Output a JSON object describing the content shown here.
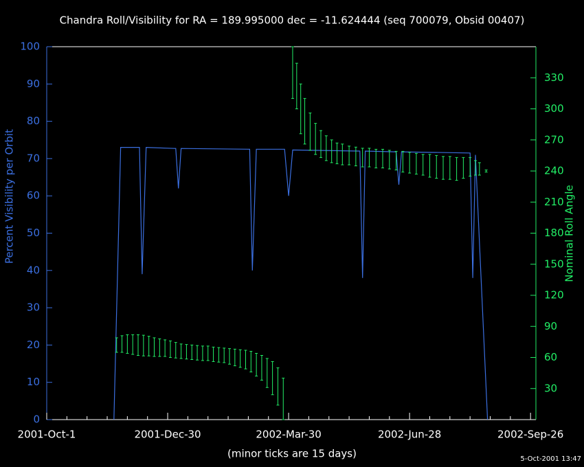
{
  "chart_data": {
    "type": "line",
    "title": "Chandra Roll/Visibility for RA = 189.995000 dec = -11.624444 (seq 700079, Obsid 00407)",
    "xlabel": "(minor ticks are 15 days)",
    "ylabel": "Percent Visibility per Orbit",
    "y2label": "Nominal Roll Angle",
    "timestamp": "5-Oct-2001 13:47",
    "xlim": [
      0,
      364
    ],
    "xticks": [
      {
        "value": 0,
        "label": "2001-Oct-1"
      },
      {
        "value": 90,
        "label": "2001-Dec-30"
      },
      {
        "value": 180,
        "label": "2002-Mar-30"
      },
      {
        "value": 270,
        "label": "2002-Jun-28"
      },
      {
        "value": 360,
        "label": "2002-Sep-26"
      }
    ],
    "xminorticks": [
      15,
      30,
      45,
      60,
      75,
      105,
      120,
      135,
      150,
      165,
      195,
      210,
      225,
      240,
      255,
      285,
      300,
      315,
      330,
      345
    ],
    "ylim": [
      0,
      100
    ],
    "yticks": [
      0,
      10,
      20,
      30,
      40,
      50,
      60,
      70,
      80,
      90,
      100
    ],
    "y2lim": [
      0,
      360
    ],
    "y2ticks": [
      30,
      60,
      90,
      120,
      150,
      180,
      210,
      240,
      270,
      300,
      330
    ],
    "left_axis_color": "#3b6fe0",
    "right_axis_color": "#22ee66",
    "series": [
      {
        "color": "#3b6fe0",
        "style": "line",
        "x": [
          50,
          55,
          69,
          71,
          74,
          96,
          98,
          100,
          151,
          153,
          156,
          177,
          180,
          183,
          233,
          235,
          237,
          260,
          262,
          264,
          315,
          317,
          319,
          328
        ],
        "values": [
          0,
          73,
          73,
          39,
          73,
          72.7,
          62,
          72.7,
          72.5,
          40,
          72.5,
          72.5,
          60,
          72.3,
          72,
          38,
          72,
          71.8,
          63,
          71.8,
          71.5,
          38,
          71,
          0
        ]
      },
      {
        "color": "#22ee66",
        "style": "errorbar",
        "axis": "y2",
        "x": [
          52,
          56,
          60,
          64,
          68,
          72,
          76,
          80,
          84,
          88,
          92,
          96,
          100,
          104,
          108,
          112,
          116,
          120,
          124,
          128,
          132,
          136,
          140,
          144,
          148,
          152,
          156,
          160,
          164,
          168,
          172,
          176,
          183,
          186,
          189,
          192,
          196,
          200,
          204,
          208,
          212,
          216,
          220,
          225,
          230,
          235,
          240,
          245,
          250,
          255,
          260,
          265,
          270,
          275,
          280,
          285,
          290,
          295,
          300,
          305,
          310,
          315,
          319,
          322,
          327
        ],
        "values": [
          72,
          73,
          73,
          72.5,
          72,
          71.5,
          71,
          70,
          69.5,
          69,
          68,
          67,
          66,
          65.5,
          65,
          64.5,
          64,
          64,
          63,
          62.5,
          62,
          61,
          60,
          59,
          58,
          56,
          53,
          50,
          45,
          40,
          32,
          20,
          335,
          322,
          300,
          288,
          278,
          271,
          266,
          262,
          259,
          257,
          256,
          255,
          254,
          253,
          253,
          252,
          252,
          251,
          250,
          249,
          248,
          247,
          246,
          245,
          244,
          243,
          243,
          242,
          243,
          244,
          243,
          242,
          240
        ],
        "errors": [
          7,
          8,
          9,
          9.5,
          10,
          10,
          9.5,
          9,
          8.5,
          8,
          8,
          7.5,
          7,
          7,
          7,
          7,
          7,
          7,
          7,
          7,
          7,
          7.5,
          8,
          8.5,
          9,
          10,
          11,
          12,
          14,
          16,
          18,
          20,
          25,
          22,
          24,
          22,
          18,
          15,
          13,
          12,
          11,
          10,
          10,
          9,
          9,
          9,
          9,
          9,
          9,
          9,
          9,
          10,
          10,
          10,
          10,
          11,
          11,
          11,
          11,
          11,
          10,
          9,
          7,
          6,
          1
        ]
      }
    ]
  }
}
